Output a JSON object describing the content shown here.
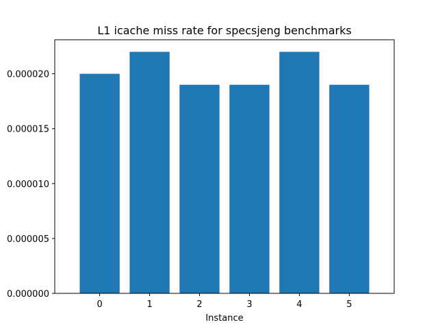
{
  "chart_data": {
    "type": "bar",
    "title": "L1 icache miss rate for specsjeng benchmarks",
    "xlabel": "Instance",
    "ylabel": "",
    "categories": [
      "0",
      "1",
      "2",
      "3",
      "4",
      "5"
    ],
    "values": [
      2e-05,
      2.2e-05,
      1.9e-05,
      1.9e-05,
      2.2e-05,
      1.9e-05
    ],
    "ylim": [
      0,
      2.31e-05
    ],
    "yticks": [
      0,
      5e-06,
      1e-05,
      1.5e-05,
      2e-05
    ],
    "ytick_labels": [
      "0.000000",
      "0.000005",
      "0.000010",
      "0.000015",
      "0.000020"
    ],
    "bar_color": "#1f77b4",
    "grid": false,
    "legend": "none"
  }
}
